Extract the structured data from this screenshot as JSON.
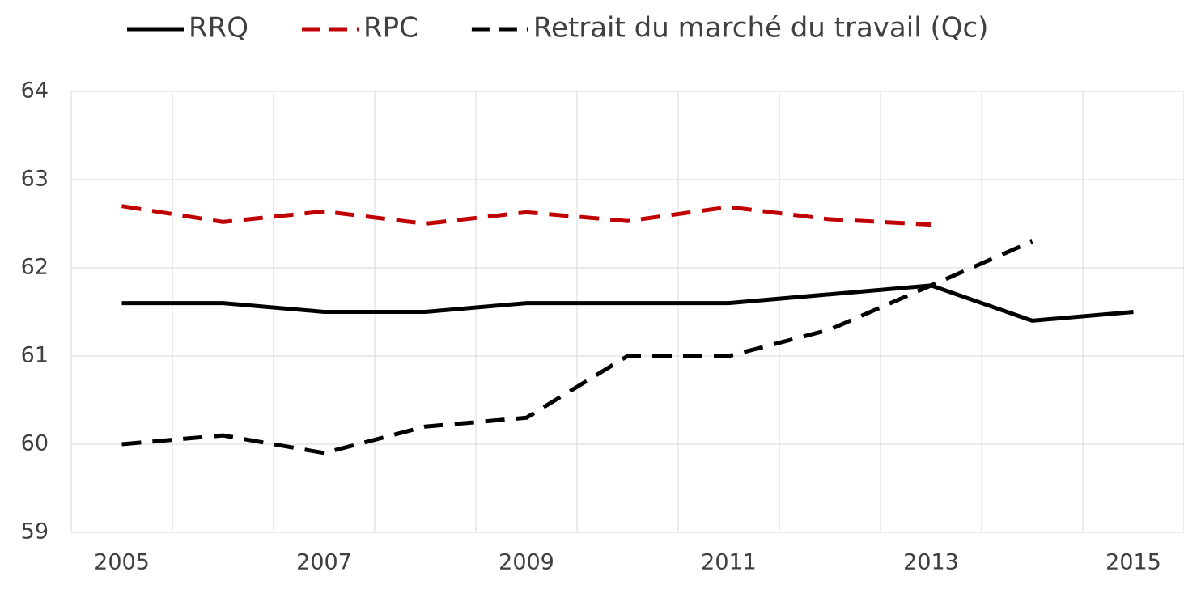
{
  "chart_data": {
    "type": "line",
    "categories": [
      "2005",
      null,
      "2007",
      null,
      "2009",
      null,
      "2011",
      null,
      "2013",
      null,
      "2015"
    ],
    "series": [
      {
        "name": "RRQ",
        "color": "#000000",
        "dash": "solid",
        "values": [
          61.6,
          61.6,
          61.5,
          61.5,
          61.6,
          61.6,
          61.6,
          61.7,
          61.8,
          61.4,
          61.5
        ]
      },
      {
        "name": "RPC",
        "color": "#c00000",
        "dash": "dashed",
        "values": [
          62.7,
          62.52,
          62.64,
          62.5,
          62.63,
          62.53,
          62.69,
          62.55,
          62.49,
          null,
          null
        ]
      },
      {
        "name": "Retrait du marché du travail (Qc)",
        "color": "#000000",
        "dash": "dashed",
        "values": [
          60.0,
          60.1,
          59.9,
          60.2,
          60.3,
          61.0,
          61.0,
          61.3,
          61.8,
          62.3,
          null
        ]
      }
    ],
    "ylim": [
      59,
      64
    ],
    "yticks": [
      59,
      60,
      61,
      62,
      63,
      64
    ],
    "grid": true,
    "legend": "top"
  }
}
